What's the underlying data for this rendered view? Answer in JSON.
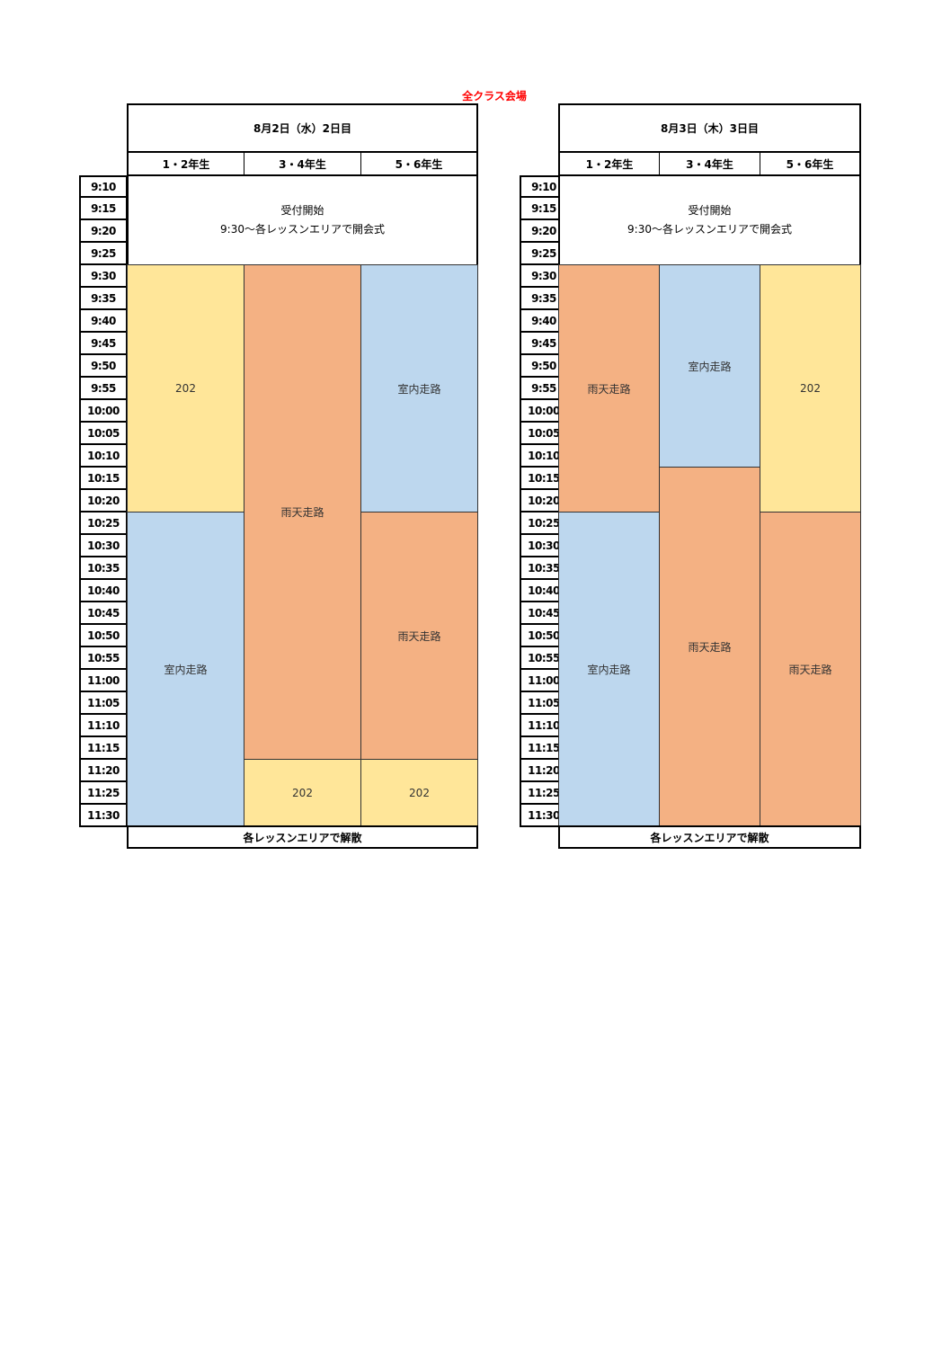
{
  "title": "全クラス会場",
  "times": [
    "9:10",
    "9:15",
    "9:20",
    "9:25",
    "9:30",
    "9:35",
    "9:40",
    "9:45",
    "9:50",
    "9:55",
    "10:00",
    "10:05",
    "10:10",
    "10:15",
    "10:20",
    "10:25",
    "10:30",
    "10:35",
    "10:40",
    "10:45",
    "10:50",
    "10:55",
    "11:00",
    "11:05",
    "11:10",
    "11:15",
    "11:20",
    "11:25",
    "11:30"
  ],
  "day1": {
    "header": "8月2日（水）2日目",
    "grades": [
      "1・2年生",
      "3・4年生",
      "5・6年生"
    ],
    "opening_line1": "受付開始",
    "opening_line2": "9:30～各レッスンエリアで開会式",
    "blocks": {
      "g12_a": "202",
      "g12_b": "室内走路",
      "g34_a": "雨天走路",
      "g34_b": "202",
      "g56_a": "室内走路",
      "g56_b": "雨天走路",
      "g56_c": "202"
    },
    "footer": "各レッスンエリアで解散"
  },
  "day2": {
    "header": "8月3日（木）3日目",
    "grades": [
      "1・2年生",
      "3・4年生",
      "5・6年生"
    ],
    "opening_line1": "受付開始",
    "opening_line2": "9:30～各レッスンエリアで開会式",
    "blocks": {
      "g12_a": "雨天走路",
      "g12_b": "室内走路",
      "g34_a": "室内走路",
      "g34_b": "雨天走路",
      "g56_a": "202",
      "g56_b": "雨天走路"
    },
    "footer": "各レッスンエリアで解散"
  },
  "colors": {
    "title": "#ff0000",
    "yellow": "#ffe699",
    "orange": "#f4b183",
    "blue": "#bdd7ee"
  }
}
